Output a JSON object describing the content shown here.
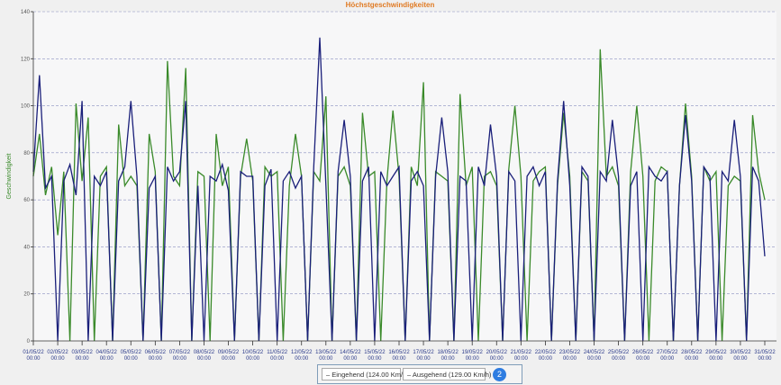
{
  "chart_data": {
    "type": "line",
    "title": "Höchstgeschwindigkeiten",
    "ylabel": "Geschwindigkeit",
    "xlabel": "",
    "ylim": [
      0,
      140
    ],
    "yticks": [
      0,
      20,
      40,
      60,
      80,
      100,
      120,
      140
    ],
    "grid": true,
    "x_unit": "days since 01/05/22 00:00",
    "x_step": 0.25,
    "xticks": [
      [
        "01/05/22",
        "00:00"
      ],
      [
        "02/05/22",
        "00:00"
      ],
      [
        "03/05/22",
        "00:00"
      ],
      [
        "04/05/22",
        "00:00"
      ],
      [
        "05/05/22",
        "00:00"
      ],
      [
        "06/05/22",
        "00:00"
      ],
      [
        "07/05/22",
        "00:00"
      ],
      [
        "08/05/22",
        "00:00"
      ],
      [
        "09/05/22",
        "00:00"
      ],
      [
        "10/05/22",
        "00:00"
      ],
      [
        "11/05/22",
        "00:00"
      ],
      [
        "12/05/22",
        "00:00"
      ],
      [
        "13/05/22",
        "00:00"
      ],
      [
        "14/05/22",
        "00:00"
      ],
      [
        "15/05/22",
        "00:00"
      ],
      [
        "16/05/22",
        "00:00"
      ],
      [
        "17/05/22",
        "00:00"
      ],
      [
        "18/05/22",
        "00:00"
      ],
      [
        "19/05/22",
        "00:00"
      ],
      [
        "20/05/22",
        "00:00"
      ],
      [
        "21/05/22",
        "00:00"
      ],
      [
        "22/05/22",
        "00:00"
      ],
      [
        "23/05/22",
        "00:00"
      ],
      [
        "24/05/22",
        "00:00"
      ],
      [
        "25/05/22",
        "00:00"
      ],
      [
        "26/05/22",
        "00:00"
      ],
      [
        "27/05/22",
        "00:00"
      ],
      [
        "28/05/22",
        "00:00"
      ],
      [
        "29/05/22",
        "00:00"
      ],
      [
        "30/05/22",
        "00:00"
      ],
      [
        "31/05/22",
        "00:00"
      ]
    ],
    "series": [
      {
        "name": "Eingehend",
        "max_label": "Eingehend (124.00 Km/h)",
        "color": "#3a8a2a",
        "values": [
          70,
          88,
          62,
          74,
          45,
          72,
          0,
          101,
          68,
          95,
          0,
          70,
          74,
          0,
          92,
          66,
          70,
          66,
          0,
          88,
          72,
          0,
          119,
          70,
          66,
          116,
          0,
          72,
          70,
          0,
          88,
          66,
          74,
          0,
          70,
          86,
          68,
          0,
          74,
          70,
          72,
          0,
          66,
          88,
          70,
          0,
          72,
          68,
          104,
          0,
          70,
          74,
          66,
          0,
          97,
          70,
          72,
          0,
          68,
          98,
          70,
          0,
          74,
          66,
          110,
          0,
          72,
          70,
          68,
          0,
          105,
          66,
          74,
          0,
          70,
          72,
          66,
          0,
          73,
          100,
          70,
          0,
          68,
          72,
          74,
          0,
          66,
          97,
          70,
          0,
          72,
          68,
          0,
          124,
          70,
          74,
          66,
          0,
          72,
          100,
          70,
          0,
          68,
          74,
          72,
          0,
          66,
          101,
          70,
          0,
          74,
          68,
          72,
          0,
          66,
          70,
          68,
          0,
          96,
          72,
          60
        ]
      },
      {
        "name": "Ausgehend",
        "max_label": "Ausgehend (129.00 Km/h)",
        "color": "#1a1f7a",
        "values": [
          72,
          113,
          65,
          70,
          0,
          68,
          75,
          62,
          102,
          0,
          70,
          66,
          72,
          0,
          68,
          74,
          102,
          70,
          0,
          65,
          70,
          0,
          74,
          68,
          72,
          102,
          0,
          66,
          0,
          70,
          68,
          75,
          64,
          0,
          72,
          70,
          70,
          0,
          66,
          73,
          0,
          68,
          72,
          65,
          70,
          0,
          74,
          129,
          66,
          0,
          72,
          94,
          70,
          0,
          68,
          74,
          0,
          72,
          66,
          70,
          74,
          0,
          68,
          72,
          66,
          0,
          70,
          95,
          72,
          0,
          70,
          68,
          0,
          74,
          66,
          92,
          70,
          0,
          72,
          68,
          0,
          70,
          74,
          66,
          72,
          0,
          68,
          102,
          66,
          0,
          74,
          70,
          0,
          72,
          68,
          94,
          70,
          0,
          66,
          72,
          0,
          74,
          70,
          68,
          72,
          0,
          66,
          96,
          68,
          0,
          74,
          70,
          0,
          72,
          68,
          94,
          70,
          0,
          74,
          68,
          36
        ]
      }
    ]
  },
  "legend": {
    "badge": "2"
  }
}
